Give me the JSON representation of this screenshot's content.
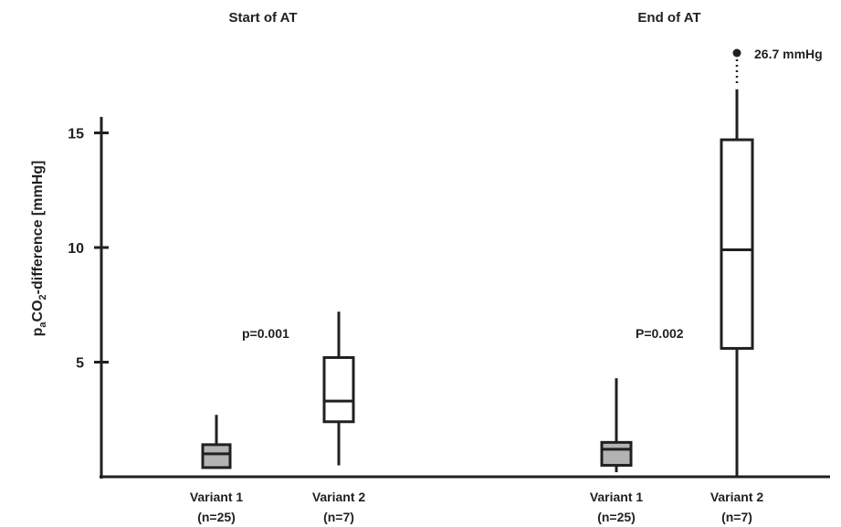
{
  "chart_data": {
    "type": "box",
    "ylabel": {
      "main": "p",
      "sub1": "a",
      "mid": "CO",
      "sub2": "2",
      "tail": "-difference [mmHg]"
    },
    "ylim": [
      0,
      15.5
    ],
    "yticks": [
      5,
      10,
      15
    ],
    "ytick_labels": [
      "5",
      "10",
      "15"
    ],
    "groups": [
      {
        "title": "Start of AT",
        "p_value": "p=0.001",
        "boxes": [
          {
            "label": "Variant 1",
            "n_label": "(n=25)",
            "fill": "#b3b3b3",
            "whisker_low": 0.4,
            "q1": 0.4,
            "median": 1.0,
            "q3": 1.4,
            "whisker_high": 2.7
          },
          {
            "label": "Variant 2",
            "n_label": "(n=7)",
            "fill": "#ffffff",
            "whisker_low": 0.5,
            "q1": 2.4,
            "median": 3.3,
            "q3": 5.2,
            "whisker_high": 7.2
          }
        ]
      },
      {
        "title": "End of AT",
        "p_value": "P=0.002",
        "boxes": [
          {
            "label": "Variant 1",
            "n_label": "(n=25)",
            "fill": "#b3b3b3",
            "whisker_low": 0.2,
            "q1": 0.5,
            "median": 1.2,
            "q3": 1.5,
            "whisker_high": 4.3
          },
          {
            "label": "Variant 2",
            "n_label": "(n=7)",
            "fill": "#ffffff",
            "whisker_low": 0.0,
            "q1": 5.6,
            "median": 9.9,
            "q3": 14.7,
            "whisker_high": 16.9,
            "outlier_label": "26.7 mmHg"
          }
        ]
      }
    ]
  }
}
